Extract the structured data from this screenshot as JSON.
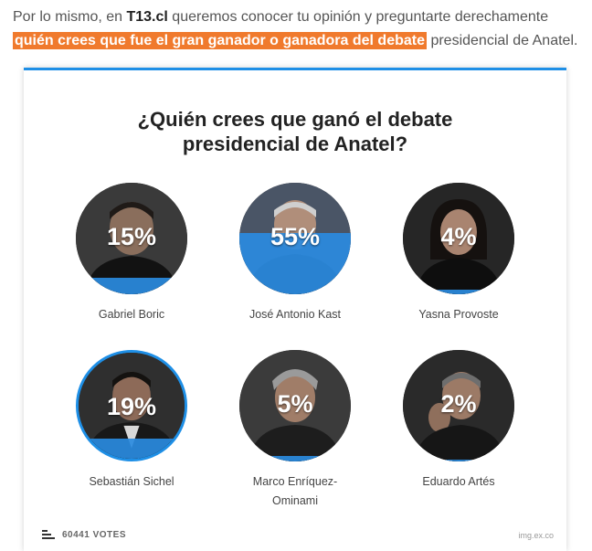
{
  "article": {
    "intro_prefix": "Por lo mismo, en ",
    "intro_site": "T13.cl",
    "intro_mid": " queremos conocer tu opinión y preguntarte derechamente ",
    "intro_highlight": "quién crees que fue el gran ganador o ganadora del debate",
    "intro_suffix": " presidencial de Anatel."
  },
  "poll": {
    "title_line1": "¿Quién crees que ganó el debate",
    "title_line2": "presidencial de Anatel?",
    "options": [
      {
        "name": "Gabriel Boric",
        "percent_label": "15%",
        "percent": 15
      },
      {
        "name": "José Antonio Kast",
        "percent_label": "55%",
        "percent": 55
      },
      {
        "name": "Yasna Provoste",
        "percent_label": "4%",
        "percent": 4
      },
      {
        "name": "Sebastián Sichel",
        "percent_label": "19%",
        "percent": 19,
        "selected": true
      },
      {
        "name_line1": "Marco Enríquez-",
        "name_line2": "Ominami",
        "percent_label": "5%",
        "percent": 5
      },
      {
        "name": "Eduardo Artés",
        "percent_label": "2%",
        "percent": 2
      }
    ],
    "votes_label": "60441 VOTES",
    "brand": "img.ex.co"
  },
  "colors": {
    "accent": "#1e8fe6",
    "highlight": "#f07a2d",
    "fill": "#2a8be0"
  },
  "icons": [
    "bars-icon"
  ]
}
